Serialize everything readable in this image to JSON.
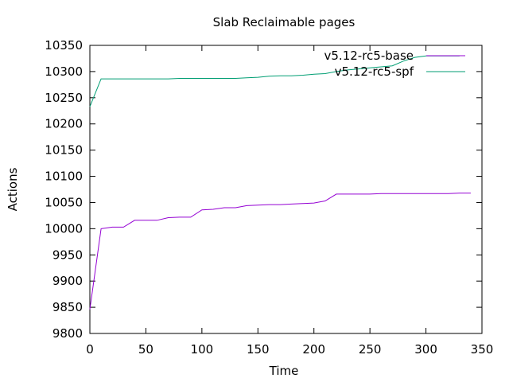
{
  "chart_data": {
    "type": "line",
    "title": "Slab Reclaimable pages",
    "xlabel": "Time",
    "ylabel": "Actions",
    "xlim": [
      0,
      350
    ],
    "ylim": [
      9800,
      10350
    ],
    "xticks": [
      0,
      50,
      100,
      150,
      200,
      250,
      300,
      350
    ],
    "yticks": [
      9800,
      9850,
      9900,
      9950,
      10000,
      10050,
      10100,
      10150,
      10200,
      10250,
      10300,
      10350
    ],
    "grid": false,
    "legend_position": "top-right",
    "series": [
      {
        "name": "v5.12-rc5-base",
        "color": "#9400d3",
        "x": [
          0,
          10,
          20,
          30,
          40,
          50,
          60,
          70,
          80,
          90,
          100,
          110,
          120,
          130,
          140,
          150,
          160,
          170,
          180,
          190,
          200,
          210,
          220,
          230,
          240,
          250,
          260,
          270,
          280,
          290,
          300,
          310,
          320,
          330,
          340
        ],
        "y": [
          9846,
          10000,
          10003,
          10003,
          10016,
          10016,
          10016,
          10021,
          10022,
          10022,
          10036,
          10037,
          10040,
          10040,
          10044,
          10045,
          10046,
          10046,
          10047,
          10048,
          10049,
          10053,
          10066,
          10066,
          10066,
          10066,
          10067,
          10067,
          10067,
          10067,
          10067,
          10067,
          10067,
          10068,
          10068
        ]
      },
      {
        "name": "v5.12-rc5-spf",
        "color": "#009e73",
        "x": [
          0,
          10,
          20,
          30,
          40,
          50,
          60,
          70,
          80,
          90,
          100,
          110,
          120,
          130,
          140,
          150,
          160,
          170,
          180,
          190,
          200,
          210,
          220,
          230,
          240,
          250,
          260,
          270,
          280,
          290,
          300,
          310,
          320,
          330
        ],
        "y": [
          10233,
          10286,
          10286,
          10286,
          10286,
          10286,
          10286,
          10286,
          10287,
          10287,
          10287,
          10287,
          10287,
          10287,
          10288,
          10289,
          10291,
          10292,
          10292,
          10293,
          10295,
          10296,
          10300,
          10303,
          10305,
          10307,
          10309,
          10311,
          10320,
          10327,
          10330,
          10330,
          10330,
          10330
        ]
      }
    ]
  }
}
